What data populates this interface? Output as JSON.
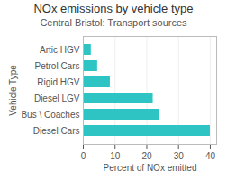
{
  "chart_data": {
    "type": "bar",
    "orientation": "horizontal",
    "title": "NOx emissions by vehicle type",
    "subtitle": "Central Bristol: Transport sources",
    "categories": [
      "Diesel Cars",
      "Bus \\ Coaches",
      "Diesel LGV",
      "Rigid HGV",
      "Petrol Cars",
      "Artic HGV"
    ],
    "values": [
      40.0,
      24.0,
      22.0,
      8.5,
      4.5,
      2.5
    ],
    "color": "#2EC4C4",
    "xlabel": "Percent of NOx emitted",
    "ylabel": "Vehicle Type",
    "xlim": [
      0,
      42
    ],
    "xticks": [
      0,
      10,
      20,
      30,
      40
    ],
    "grid": true
  }
}
